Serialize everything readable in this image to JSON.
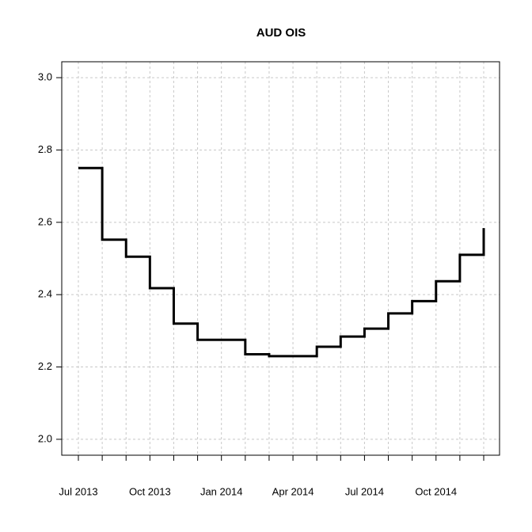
{
  "chart_data": {
    "type": "step",
    "title": "AUD OIS",
    "categories": [
      "Jul 2013",
      null,
      null,
      "Oct 2013",
      null,
      null,
      "Jan 2014",
      null,
      null,
      "Apr 2014",
      null,
      null,
      "Jul 2014",
      null,
      null,
      "Oct 2014",
      null,
      null
    ],
    "values": [
      2.75,
      2.552,
      2.505,
      2.418,
      2.32,
      2.275,
      2.275,
      2.235,
      2.23,
      2.23,
      2.256,
      2.284,
      2.306,
      2.348,
      2.382,
      2.437,
      2.51,
      2.584
    ],
    "color": "#000000",
    "ylim": [
      1.956,
      3.044
    ],
    "yticks": [
      {
        "value": 2.0,
        "label": "2.0"
      },
      2.2,
      2.4,
      2.6,
      2.8,
      {
        "value": 3.0,
        "label": "3.0"
      }
    ],
    "grid": true
  }
}
